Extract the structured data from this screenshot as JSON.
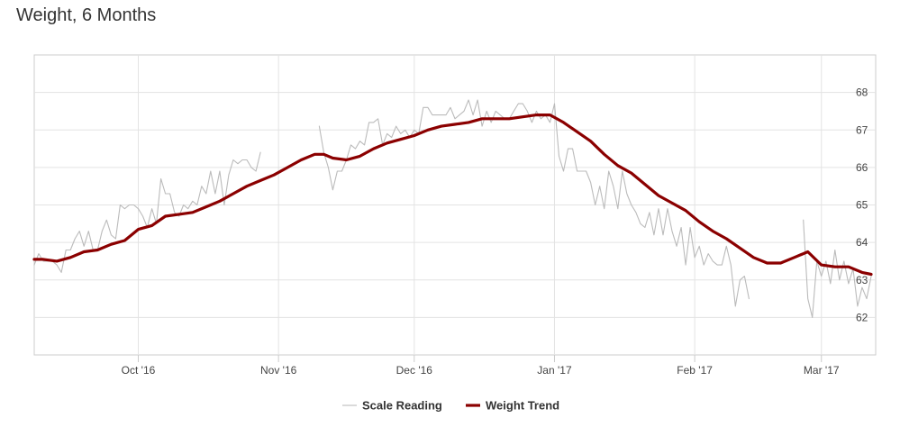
{
  "title": "Weight, 6 Months",
  "chart_data": {
    "type": "line",
    "title": "Weight, 6 Months",
    "xlabel": "",
    "ylabel": "",
    "x_ticks": [
      "Oct '16",
      "Nov '16",
      "Dec '16",
      "Jan '17",
      "Feb '17",
      "Mar '17"
    ],
    "x_range": [
      "2016-09-08",
      "2017-03-13"
    ],
    "y_ticks": [
      62,
      63,
      64,
      65,
      66,
      67,
      68
    ],
    "ylim": [
      61,
      69
    ],
    "y_axis_position": "right",
    "grid": true,
    "legend": "bottom-center",
    "series": [
      {
        "name": "Scale Reading",
        "color": "#bbbbbb",
        "line_width": "thin",
        "points": [
          [
            "2016-09-08",
            63.4
          ],
          [
            "2016-09-09",
            63.7
          ],
          [
            "2016-09-10",
            63.5
          ],
          [
            "2016-09-11",
            63.5
          ],
          [
            "2016-09-12",
            63.5
          ],
          [
            "2016-09-13",
            63.4
          ],
          [
            "2016-09-14",
            63.2
          ],
          [
            "2016-09-15",
            63.8
          ],
          [
            "2016-09-16",
            63.8
          ],
          [
            "2016-09-17",
            64.1
          ],
          [
            "2016-09-18",
            64.3
          ],
          [
            "2016-09-19",
            63.9
          ],
          [
            "2016-09-20",
            64.3
          ],
          [
            "2016-09-21",
            63.8
          ],
          [
            "2016-09-22",
            63.8
          ],
          [
            "2016-09-23",
            64.3
          ],
          [
            "2016-09-24",
            64.6
          ],
          [
            "2016-09-25",
            64.2
          ],
          [
            "2016-09-26",
            64.1
          ],
          [
            "2016-09-27",
            65.0
          ],
          [
            "2016-09-28",
            64.9
          ],
          [
            "2016-09-29",
            65.0
          ],
          [
            "2016-09-30",
            65.0
          ],
          [
            "2016-10-01",
            64.9
          ],
          [
            "2016-10-02",
            64.7
          ],
          [
            "2016-10-03",
            64.4
          ],
          [
            "2016-10-04",
            64.9
          ],
          [
            "2016-10-05",
            64.5
          ],
          [
            "2016-10-06",
            65.7
          ],
          [
            "2016-10-07",
            65.3
          ],
          [
            "2016-10-08",
            65.3
          ],
          [
            "2016-10-09",
            64.8
          ],
          [
            "2016-10-10",
            64.7
          ],
          [
            "2016-10-11",
            65.0
          ],
          [
            "2016-10-12",
            64.9
          ],
          [
            "2016-10-13",
            65.1
          ],
          [
            "2016-10-14",
            65.0
          ],
          [
            "2016-10-15",
            65.5
          ],
          [
            "2016-10-16",
            65.3
          ],
          [
            "2016-10-17",
            65.9
          ],
          [
            "2016-10-18",
            65.3
          ],
          [
            "2016-10-19",
            65.9
          ],
          [
            "2016-10-20",
            65.0
          ],
          [
            "2016-10-21",
            65.8
          ],
          [
            "2016-10-22",
            66.2
          ],
          [
            "2016-10-23",
            66.1
          ],
          [
            "2016-10-24",
            66.2
          ],
          [
            "2016-10-25",
            66.2
          ],
          [
            "2016-10-26",
            66.0
          ],
          [
            "2016-10-27",
            65.9
          ],
          [
            "2016-10-28",
            66.4
          ],
          [
            "2016-11-10",
            67.1
          ],
          [
            "2016-11-11",
            66.4
          ],
          [
            "2016-11-12",
            66.0
          ],
          [
            "2016-11-13",
            65.4
          ],
          [
            "2016-11-14",
            65.9
          ],
          [
            "2016-11-15",
            65.9
          ],
          [
            "2016-11-16",
            66.2
          ],
          [
            "2016-11-17",
            66.6
          ],
          [
            "2016-11-18",
            66.5
          ],
          [
            "2016-11-19",
            66.7
          ],
          [
            "2016-11-20",
            66.6
          ],
          [
            "2016-11-21",
            67.2
          ],
          [
            "2016-11-22",
            67.2
          ],
          [
            "2016-11-23",
            67.3
          ],
          [
            "2016-11-24",
            66.6
          ],
          [
            "2016-11-25",
            66.9
          ],
          [
            "2016-11-26",
            66.8
          ],
          [
            "2016-11-27",
            67.1
          ],
          [
            "2016-11-28",
            66.9
          ],
          [
            "2016-11-29",
            67.0
          ],
          [
            "2016-11-30",
            66.8
          ],
          [
            "2016-12-01",
            67.0
          ],
          [
            "2016-12-02",
            66.9
          ],
          [
            "2016-12-03",
            67.6
          ],
          [
            "2016-12-04",
            67.6
          ],
          [
            "2016-12-05",
            67.4
          ],
          [
            "2016-12-06",
            67.4
          ],
          [
            "2016-12-07",
            67.4
          ],
          [
            "2016-12-08",
            67.4
          ],
          [
            "2016-12-09",
            67.6
          ],
          [
            "2016-12-10",
            67.3
          ],
          [
            "2016-12-11",
            67.4
          ],
          [
            "2016-12-12",
            67.5
          ],
          [
            "2016-12-13",
            67.8
          ],
          [
            "2016-12-14",
            67.4
          ],
          [
            "2016-12-15",
            67.8
          ],
          [
            "2016-12-16",
            67.1
          ],
          [
            "2016-12-17",
            67.5
          ],
          [
            "2016-12-18",
            67.2
          ],
          [
            "2016-12-19",
            67.5
          ],
          [
            "2016-12-20",
            67.4
          ],
          [
            "2016-12-21",
            67.3
          ],
          [
            "2016-12-22",
            67.3
          ],
          [
            "2016-12-23",
            67.5
          ],
          [
            "2016-12-24",
            67.7
          ],
          [
            "2016-12-25",
            67.7
          ],
          [
            "2016-12-26",
            67.5
          ],
          [
            "2016-12-27",
            67.2
          ],
          [
            "2016-12-28",
            67.5
          ],
          [
            "2016-12-29",
            67.3
          ],
          [
            "2016-12-30",
            67.4
          ],
          [
            "2016-12-31",
            67.2
          ],
          [
            "2017-01-01",
            67.7
          ],
          [
            "2017-01-02",
            66.3
          ],
          [
            "2017-01-03",
            65.9
          ],
          [
            "2017-01-04",
            66.5
          ],
          [
            "2017-01-05",
            66.5
          ],
          [
            "2017-01-06",
            65.9
          ],
          [
            "2017-01-07",
            65.9
          ],
          [
            "2017-01-08",
            65.9
          ],
          [
            "2017-01-09",
            65.6
          ],
          [
            "2017-01-10",
            65.0
          ],
          [
            "2017-01-11",
            65.5
          ],
          [
            "2017-01-12",
            64.9
          ],
          [
            "2017-01-13",
            65.9
          ],
          [
            "2017-01-14",
            65.5
          ],
          [
            "2017-01-15",
            64.9
          ],
          [
            "2017-01-16",
            65.9
          ],
          [
            "2017-01-17",
            65.3
          ],
          [
            "2017-01-18",
            65.0
          ],
          [
            "2017-01-19",
            64.8
          ],
          [
            "2017-01-20",
            64.5
          ],
          [
            "2017-01-21",
            64.4
          ],
          [
            "2017-01-22",
            64.8
          ],
          [
            "2017-01-23",
            64.2
          ],
          [
            "2017-01-24",
            64.9
          ],
          [
            "2017-01-25",
            64.2
          ],
          [
            "2017-01-26",
            64.9
          ],
          [
            "2017-01-27",
            64.3
          ],
          [
            "2017-01-28",
            63.9
          ],
          [
            "2017-01-29",
            64.4
          ],
          [
            "2017-01-30",
            63.4
          ],
          [
            "2017-01-31",
            64.4
          ],
          [
            "2017-02-01",
            63.6
          ],
          [
            "2017-02-02",
            63.9
          ],
          [
            "2017-02-03",
            63.4
          ],
          [
            "2017-02-04",
            63.7
          ],
          [
            "2017-02-05",
            63.5
          ],
          [
            "2017-02-06",
            63.4
          ],
          [
            "2017-02-07",
            63.4
          ],
          [
            "2017-02-08",
            63.9
          ],
          [
            "2017-02-09",
            63.4
          ],
          [
            "2017-02-10",
            62.3
          ],
          [
            "2017-02-11",
            63.0
          ],
          [
            "2017-02-12",
            63.1
          ],
          [
            "2017-02-13",
            62.5
          ],
          [
            "2017-02-25",
            64.6
          ],
          [
            "2017-02-26",
            62.5
          ],
          [
            "2017-02-27",
            62.0
          ],
          [
            "2017-02-28",
            63.5
          ],
          [
            "2017-03-01",
            63.1
          ],
          [
            "2017-03-02",
            63.5
          ],
          [
            "2017-03-03",
            62.9
          ],
          [
            "2017-03-04",
            63.8
          ],
          [
            "2017-03-05",
            63.0
          ],
          [
            "2017-03-06",
            63.5
          ],
          [
            "2017-03-07",
            62.9
          ],
          [
            "2017-03-08",
            63.3
          ],
          [
            "2017-03-09",
            62.3
          ],
          [
            "2017-03-10",
            62.8
          ],
          [
            "2017-03-11",
            62.5
          ],
          [
            "2017-03-12",
            63.1
          ]
        ]
      },
      {
        "name": "Weight Trend",
        "color": "#8b0000",
        "line_width": "thick",
        "points": [
          [
            "2016-09-08",
            63.55
          ],
          [
            "2016-09-10",
            63.55
          ],
          [
            "2016-09-13",
            63.5
          ],
          [
            "2016-09-16",
            63.6
          ],
          [
            "2016-09-19",
            63.75
          ],
          [
            "2016-09-22",
            63.8
          ],
          [
            "2016-09-25",
            63.95
          ],
          [
            "2016-09-28",
            64.05
          ],
          [
            "2016-10-01",
            64.35
          ],
          [
            "2016-10-04",
            64.45
          ],
          [
            "2016-10-07",
            64.7
          ],
          [
            "2016-10-10",
            64.75
          ],
          [
            "2016-10-13",
            64.8
          ],
          [
            "2016-10-16",
            64.95
          ],
          [
            "2016-10-19",
            65.1
          ],
          [
            "2016-10-22",
            65.3
          ],
          [
            "2016-10-25",
            65.5
          ],
          [
            "2016-10-28",
            65.65
          ],
          [
            "2016-10-31",
            65.8
          ],
          [
            "2016-11-03",
            66.0
          ],
          [
            "2016-11-06",
            66.2
          ],
          [
            "2016-11-09",
            66.35
          ],
          [
            "2016-11-11",
            66.35
          ],
          [
            "2016-11-13",
            66.25
          ],
          [
            "2016-11-16",
            66.2
          ],
          [
            "2016-11-19",
            66.3
          ],
          [
            "2016-11-22",
            66.5
          ],
          [
            "2016-11-25",
            66.65
          ],
          [
            "2016-11-28",
            66.75
          ],
          [
            "2016-12-01",
            66.85
          ],
          [
            "2016-12-04",
            67.0
          ],
          [
            "2016-12-07",
            67.1
          ],
          [
            "2016-12-10",
            67.15
          ],
          [
            "2016-12-13",
            67.2
          ],
          [
            "2016-12-16",
            67.3
          ],
          [
            "2016-12-19",
            67.3
          ],
          [
            "2016-12-22",
            67.3
          ],
          [
            "2016-12-25",
            67.35
          ],
          [
            "2016-12-28",
            67.4
          ],
          [
            "2016-12-31",
            67.4
          ],
          [
            "2017-01-03",
            67.2
          ],
          [
            "2017-01-06",
            66.95
          ],
          [
            "2017-01-09",
            66.7
          ],
          [
            "2017-01-12",
            66.35
          ],
          [
            "2017-01-15",
            66.05
          ],
          [
            "2017-01-18",
            65.85
          ],
          [
            "2017-01-21",
            65.55
          ],
          [
            "2017-01-24",
            65.25
          ],
          [
            "2017-01-27",
            65.05
          ],
          [
            "2017-01-30",
            64.85
          ],
          [
            "2017-02-02",
            64.55
          ],
          [
            "2017-02-05",
            64.3
          ],
          [
            "2017-02-08",
            64.1
          ],
          [
            "2017-02-11",
            63.85
          ],
          [
            "2017-02-14",
            63.6
          ],
          [
            "2017-02-17",
            63.45
          ],
          [
            "2017-02-20",
            63.45
          ],
          [
            "2017-02-23",
            63.6
          ],
          [
            "2017-02-26",
            63.75
          ],
          [
            "2017-03-01",
            63.4
          ],
          [
            "2017-03-04",
            63.35
          ],
          [
            "2017-03-07",
            63.35
          ],
          [
            "2017-03-10",
            63.2
          ],
          [
            "2017-03-12",
            63.15
          ]
        ]
      }
    ]
  }
}
